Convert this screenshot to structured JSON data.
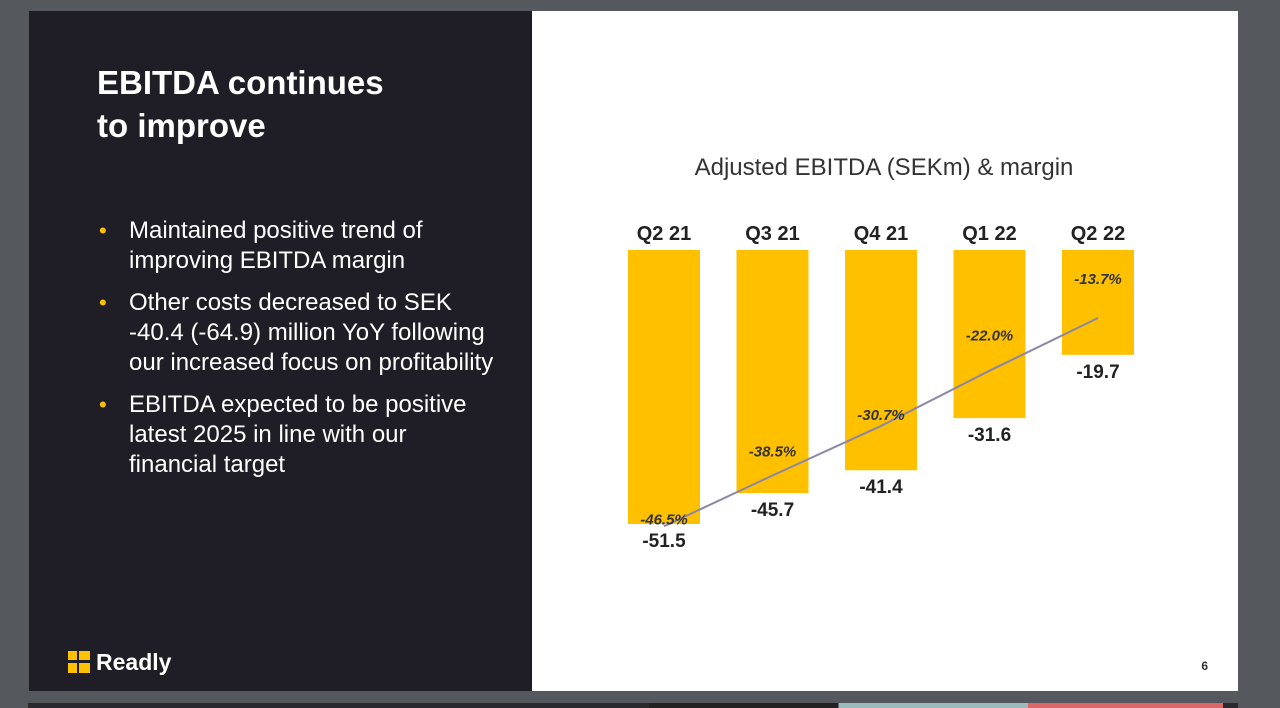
{
  "slide": {
    "title_line1": "EBITDA continues",
    "title_line2": "to improve",
    "bullets": [
      "Maintained positive trend of improving EBITDA margin",
      "Other costs decreased to SEK -40.4 (-64.9) million YoY following our increased focus on profitability",
      "EBITDA expected to be positive latest 2025 in line with our financial target"
    ],
    "bullet_symbol": "•",
    "logo_text": "Readly",
    "page_number": "6"
  },
  "colors": {
    "dark_panel": "#1f1e26",
    "bar": "#ffc000",
    "margin_line": "#8a86a8",
    "bullet_accent": "#ffc000"
  },
  "chart_data": {
    "type": "bar",
    "title": "Adjusted EBITDA (SEKm) & margin",
    "categories": [
      "Q2 21",
      "Q3 21",
      "Q4 21",
      "Q1 22",
      "Q2 22"
    ],
    "series": [
      {
        "values": [
          -51.5,
          -45.7,
          -41.4,
          -31.6,
          -19.7
        ],
        "labels": [
          "-51.5",
          "-45.7",
          "-41.4",
          "-31.6",
          "-19.7"
        ]
      },
      {
        "type": "line",
        "values": [
          -46.5,
          -38.5,
          -30.7,
          -22.0,
          -13.7
        ],
        "labels": [
          "-46.5%",
          "-38.5%",
          "-30.7%",
          "-22.0%",
          "-13.7%"
        ]
      }
    ],
    "ylim": [
      -60,
      0
    ],
    "grid": false,
    "legend": "none"
  }
}
